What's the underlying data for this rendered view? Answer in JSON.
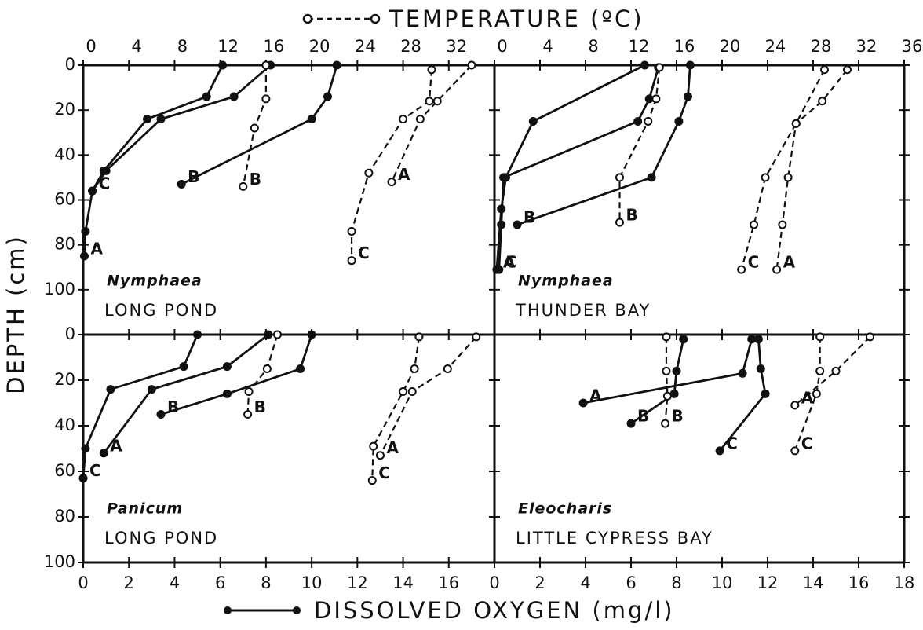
{
  "chart_data": {
    "type": "line",
    "x2label": "TEMPERATURE (ºC)",
    "xlabel": "DISSOLVED OXYGEN (mg/l)",
    "ylabel": "DEPTH (cm)",
    "panels": [
      {
        "plant": "Nymphaea",
        "site": "LONG POND",
        "xlim": [
          0,
          18
        ],
        "x2lim": [
          0,
          36
        ],
        "ylim": [
          0,
          120
        ],
        "x2ticks": [
          0,
          4,
          8,
          12,
          16,
          20,
          24,
          28,
          32
        ],
        "yticks": [
          0,
          20,
          40,
          60,
          80,
          100
        ],
        "series": [
          {
            "name": "A",
            "depth": [
              0,
              14,
              24,
              47,
              56,
              74,
              85
            ],
            "values": [
              8.2,
              6.6,
              3.4,
              1.0,
              0.4,
              0.1,
              0.05
            ]
          },
          {
            "name": "B",
            "depth": [
              0,
              14,
              24,
              53
            ],
            "values": [
              11.1,
              10.7,
              10.0,
              4.3
            ]
          },
          {
            "name": "C",
            "depth": [
              0,
              14,
              24,
              47,
              56
            ],
            "values": [
              6.1,
              5.4,
              2.8,
              0.9,
              0.4
            ]
          },
          {
            "name": "A",
            "axis": "x2",
            "depth": [
              0,
              16,
              24,
              52
            ],
            "values": [
              34,
              31,
              29.5,
              27
            ]
          },
          {
            "name": "B",
            "axis": "x2",
            "depth": [
              0,
              15,
              28,
              54
            ],
            "values": [
              16,
              16,
              15,
              14
            ]
          },
          {
            "name": "C",
            "axis": "x2",
            "depth": [
              2,
              16,
              24,
              48,
              74,
              87
            ],
            "values": [
              30.5,
              30.3,
              28,
              25,
              23.5,
              23.5
            ]
          }
        ]
      },
      {
        "plant": "Nymphaea",
        "site": "THUNDER BAY",
        "xlim": [
          0,
          18
        ],
        "x2lim": [
          0,
          36
        ],
        "ylim": [
          0,
          120
        ],
        "x2ticks": [
          0,
          4,
          8,
          12,
          16,
          20,
          24,
          28,
          32,
          36
        ],
        "series": [
          {
            "name": "A",
            "depth": [
              0,
              25,
              50,
              64,
              91
            ],
            "values": [
              6.6,
              1.7,
              0.5,
              0.3,
              0.1
            ]
          },
          {
            "name": "B",
            "depth": [
              0,
              14,
              25,
              50,
              71
            ],
            "values": [
              8.6,
              8.5,
              8.1,
              6.9,
              1.0
            ]
          },
          {
            "name": "C",
            "depth": [
              1,
              15,
              25,
              50,
              71,
              91
            ],
            "values": [
              7.2,
              6.8,
              6.3,
              0.4,
              0.3,
              0.2
            ]
          },
          {
            "name": "A",
            "axis": "x2",
            "depth": [
              2,
              16,
              26,
              50,
              71,
              91
            ],
            "values": [
              31,
              28.8,
              26.5,
              25.8,
              25.3,
              24.8
            ]
          },
          {
            "name": "B",
            "axis": "x2",
            "depth": [
              1,
              15,
              25,
              50,
              70
            ],
            "values": [
              14.5,
              14.2,
              13.5,
              11,
              11
            ]
          },
          {
            "name": "C",
            "axis": "x2",
            "depth": [
              2,
              26,
              50,
              71,
              91
            ],
            "values": [
              29,
              26.5,
              23.8,
              22.8,
              21.7
            ]
          }
        ]
      },
      {
        "plant": "Panicum",
        "site": "LONG POND",
        "xlim": [
          0,
          18
        ],
        "x2lim": [
          0,
          36
        ],
        "ylim": [
          0,
          100
        ],
        "xticks": [
          0,
          2,
          4,
          6,
          8,
          10,
          12,
          14,
          16
        ],
        "yticks": [
          0,
          20,
          40,
          60,
          80,
          100
        ],
        "series": [
          {
            "name": "A",
            "depth": [
              0,
              14,
              24,
              52
            ],
            "values": [
              8.1,
              6.3,
              3.0,
              0.9
            ]
          },
          {
            "name": "B",
            "depth": [
              0,
              15,
              26,
              35
            ],
            "values": [
              10,
              9.5,
              6.3,
              3.4
            ]
          },
          {
            "name": "C",
            "depth": [
              0,
              14,
              24,
              50,
              63
            ],
            "values": [
              5.0,
              4.4,
              1.2,
              0.1,
              0
            ]
          },
          {
            "name": "A",
            "axis": "x2",
            "depth": [
              1,
              15,
              25,
              53
            ],
            "values": [
              34.4,
              31.9,
              28.8,
              26
            ]
          },
          {
            "name": "B",
            "axis": "x2",
            "depth": [
              0,
              15,
              25,
              35
            ],
            "values": [
              17,
              16.1,
              14.5,
              14.4
            ]
          },
          {
            "name": "C",
            "axis": "x2",
            "depth": [
              1,
              15,
              25,
              49,
              64
            ],
            "values": [
              29.4,
              29,
              28,
              25.4,
              25.3
            ]
          }
        ]
      },
      {
        "plant": "Eleocharis",
        "site": "LITTLE CYPRESS BAY",
        "xlim": [
          0,
          18
        ],
        "x2lim": [
          0,
          36
        ],
        "ylim": [
          0,
          100
        ],
        "xticks": [
          0,
          2,
          4,
          6,
          8,
          10,
          12,
          14,
          16,
          18
        ],
        "series": [
          {
            "name": "A",
            "depth": [
              2,
              17,
              30
            ],
            "values": [
              11.3,
              10.9,
              3.9
            ]
          },
          {
            "name": "B",
            "depth": [
              2,
              16,
              26,
              39
            ],
            "values": [
              8.3,
              8.0,
              7.9,
              6.0
            ]
          },
          {
            "name": "C",
            "depth": [
              2,
              15,
              26,
              51
            ],
            "values": [
              11.6,
              11.7,
              11.9,
              9.9
            ]
          },
          {
            "name": "A",
            "axis": "x2",
            "depth": [
              1,
              16,
              31
            ],
            "values": [
              33,
              30,
              26.4
            ]
          },
          {
            "name": "B",
            "axis": "x2",
            "depth": [
              1,
              16,
              27,
              39
            ],
            "values": [
              15.1,
              15.1,
              15.2,
              15
            ]
          },
          {
            "name": "C",
            "axis": "x2",
            "depth": [
              1,
              16,
              26,
              51
            ],
            "values": [
              28.6,
              28.6,
              28.3,
              26.4
            ]
          }
        ]
      }
    ]
  }
}
